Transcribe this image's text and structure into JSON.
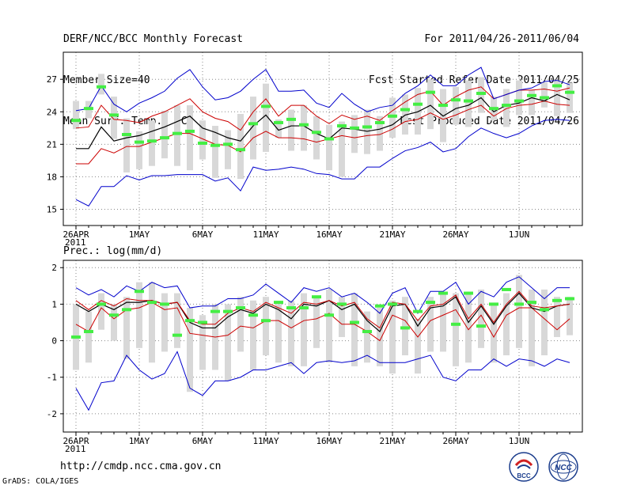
{
  "header": {
    "title": "DERF/NCC/BCC Monthly Forecast",
    "member_size": "Member Size=40",
    "variable": "Mean Surf. Temp.: °C",
    "period": "For 2011/04/26-2011/06/04",
    "start_date": "Fcst Started Refer Date 2011/04/25",
    "produced_date": "Fcst Produced Date 2011/04/26"
  },
  "footer": {
    "url": "http://cmdp.ncc.cma.gov.cn",
    "credit": "GrADS: COLA/IGES",
    "logo_bcc": "BCC",
    "logo_ncc": "NCC"
  },
  "colors": {
    "envelope": "#0000cc",
    "spread": "#cc0000",
    "mean": "#000000",
    "box": "#d8d8d8",
    "median": "#44ee44",
    "grid": "#888888"
  },
  "chart_data": [
    {
      "type": "box-line",
      "title": "Mean Surf. Temp.: °C",
      "ylabel": "Mean Surf. Temp. (°C)",
      "ylim": [
        13.5,
        29.5
      ],
      "yticks": [
        15,
        18,
        21,
        24,
        27
      ],
      "x_tick_labels": [
        "26APR",
        "1MAY",
        "6MAY",
        "11MAY",
        "16MAY",
        "21MAY",
        "26MAY",
        "1JUN"
      ],
      "x_year_label": "2011",
      "days": 40,
      "series": [
        {
          "name": "max",
          "values": [
            15.9,
            15.3,
            17.1,
            17.1,
            18.1,
            17.7,
            18.1,
            18.1,
            18.2,
            18.2,
            18.2,
            17.6,
            17.9,
            16.7,
            18.9,
            18.6,
            18.7,
            18.9,
            18.7,
            18.3,
            18.2,
            17.8,
            17.8,
            18.9,
            18.9,
            19.7,
            20.4,
            20.7,
            21.2,
            20.3,
            20.6,
            21.7,
            22.5,
            22.0,
            21.6,
            22.0,
            22.7,
            23.2,
            23.3,
            23.2
          ]
        },
        {
          "name": "p_low",
          "values": [
            19.2,
            19.2,
            20.6,
            20.2,
            20.8,
            20.8,
            21.2,
            21.6,
            22.0,
            22.0,
            21.5,
            21.0,
            20.9,
            20.3,
            21.6,
            22.2,
            21.6,
            21.6,
            21.5,
            21.2,
            21.5,
            21.8,
            21.6,
            21.8,
            21.9,
            22.4,
            23.1,
            23.3,
            23.9,
            23.3,
            23.7,
            24.2,
            24.6,
            23.6,
            24.3,
            24.6,
            24.7,
            25.0,
            24.7,
            24.6
          ]
        },
        {
          "name": "mean",
          "values": [
            20.6,
            20.6,
            22.6,
            21.3,
            21.6,
            21.8,
            22.2,
            22.6,
            23.1,
            23.6,
            22.5,
            22.1,
            21.6,
            21.3,
            22.7,
            23.7,
            22.3,
            22.7,
            22.7,
            22.0,
            21.5,
            22.5,
            22.4,
            22.2,
            22.4,
            22.8,
            23.7,
            24.0,
            24.6,
            23.6,
            24.3,
            24.6,
            25.3,
            24.0,
            24.6,
            24.8,
            25.3,
            25.0,
            25.6,
            25.1
          ]
        },
        {
          "name": "p_high",
          "values": [
            22.5,
            22.6,
            24.6,
            23.3,
            23.2,
            23.0,
            23.6,
            24.0,
            24.6,
            25.2,
            24.0,
            23.4,
            23.1,
            22.3,
            24.0,
            25.2,
            23.6,
            24.6,
            24.6,
            23.6,
            22.9,
            23.7,
            23.3,
            23.6,
            23.2,
            24.1,
            24.9,
            25.6,
            25.9,
            24.6,
            25.4,
            26.0,
            26.3,
            25.2,
            25.6,
            26.0,
            26.0,
            26.1,
            25.9,
            26.2
          ]
        },
        {
          "name": "min",
          "values": [
            24.1,
            24.3,
            26.4,
            24.7,
            24.0,
            24.8,
            25.3,
            25.9,
            27.1,
            27.9,
            26.3,
            25.1,
            25.3,
            25.9,
            27.0,
            27.9,
            25.9,
            25.9,
            26.0,
            24.8,
            24.4,
            25.7,
            24.7,
            24.0,
            24.4,
            24.6,
            25.7,
            26.4,
            27.4,
            26.4,
            26.4,
            27.4,
            28.1,
            25.2,
            25.6,
            26.0,
            26.2,
            26.8,
            26.9,
            26.5
          ]
        }
      ],
      "boxes": {
        "low": [
          22.4,
          23.4,
          25.6,
          21.5,
          18.4,
          18.7,
          19.0,
          19.7,
          19.0,
          18.6,
          19.6,
          17.9,
          18.7,
          17.8,
          19.6,
          20.3,
          21.6,
          20.4,
          20.4,
          19.6,
          18.6,
          18.0,
          20.2,
          20.1,
          20.4,
          21.6,
          21.9,
          21.9,
          22.4,
          21.2,
          22.8,
          22.6,
          23.9,
          23.2,
          22.6,
          23.7,
          23.7,
          24.4,
          23.6,
          23.9
        ],
        "high": [
          25.0,
          25.0,
          27.5,
          25.4,
          23.4,
          22.2,
          23.2,
          24.1,
          24.6,
          24.6,
          23.2,
          22.7,
          22.3,
          23.8,
          25.4,
          26.6,
          23.3,
          24.2,
          24.6,
          23.6,
          22.8,
          23.1,
          23.7,
          24.2,
          23.6,
          25.3,
          25.6,
          26.2,
          27.0,
          26.1,
          26.3,
          26.9,
          27.2,
          25.4,
          26.1,
          26.9,
          26.0,
          26.7,
          26.9,
          26.7
        ],
        "median": [
          23.2,
          24.3,
          26.3,
          23.7,
          21.9,
          21.2,
          21.3,
          21.6,
          22.0,
          22.2,
          21.1,
          20.9,
          21.0,
          20.5,
          22.9,
          24.5,
          23.0,
          23.3,
          22.8,
          22.1,
          21.5,
          22.7,
          22.5,
          22.6,
          23.0,
          23.6,
          24.2,
          24.7,
          25.8,
          24.6,
          25.1,
          25.0,
          25.7,
          24.3,
          24.6,
          25.0,
          25.5,
          25.3,
          26.4,
          25.8
        ]
      }
    },
    {
      "type": "box-line",
      "title": "Prec.: log(mm/d)",
      "ylabel": "log(mm/d)",
      "ylim": [
        -2.5,
        2.2
      ],
      "yticks": [
        -2,
        -1,
        0,
        1,
        2
      ],
      "x_tick_labels": [
        "26APR",
        "1MAY",
        "6MAY",
        "11MAY",
        "16MAY",
        "21MAY",
        "26MAY",
        "1JUN"
      ],
      "x_year_label": "2011",
      "days": 40,
      "series": [
        {
          "name": "min",
          "values": [
            -1.3,
            -1.9,
            -1.15,
            -1.1,
            -0.4,
            -0.8,
            -1.05,
            -0.9,
            -0.3,
            -1.3,
            -1.5,
            -1.1,
            -1.1,
            -1.0,
            -0.8,
            -0.8,
            -0.7,
            -0.6,
            -0.9,
            -0.6,
            -0.55,
            -0.6,
            -0.55,
            -0.4,
            -0.6,
            -0.6,
            -0.6,
            -0.5,
            -0.4,
            -1.0,
            -1.1,
            -0.8,
            -0.8,
            -0.5,
            -0.7,
            -0.5,
            -0.55,
            -0.7,
            -0.5,
            -0.6
          ]
        },
        {
          "name": "p_low",
          "values": [
            0.45,
            0.25,
            0.9,
            0.6,
            0.85,
            0.9,
            1.05,
            0.85,
            0.9,
            0.2,
            0.15,
            0.1,
            0.15,
            0.4,
            0.35,
            0.55,
            0.55,
            0.35,
            0.55,
            0.6,
            0.75,
            0.45,
            0.45,
            0.25,
            0.0,
            0.7,
            0.55,
            0.1,
            0.55,
            0.7,
            0.85,
            0.3,
            0.7,
            0.1,
            0.7,
            0.9,
            0.9,
            0.6,
            0.3,
            0.6
          ]
        },
        {
          "name": "mean",
          "values": [
            1.0,
            0.8,
            1.0,
            0.85,
            1.05,
            1.05,
            1.1,
            1.0,
            1.05,
            0.5,
            0.35,
            0.35,
            0.65,
            0.85,
            0.75,
            1.0,
            0.85,
            0.6,
            1.0,
            0.95,
            1.1,
            0.85,
            1.0,
            0.55,
            0.25,
            0.95,
            1.0,
            0.4,
            0.9,
            0.95,
            1.2,
            0.5,
            0.95,
            0.45,
            0.95,
            1.3,
            0.9,
            0.8,
            0.95,
            1.0
          ]
        },
        {
          "name": "p_high",
          "values": [
            1.1,
            0.85,
            1.1,
            0.95,
            1.15,
            1.1,
            1.1,
            1.0,
            1.05,
            0.55,
            0.45,
            0.45,
            0.75,
            0.9,
            0.8,
            1.05,
            0.9,
            0.75,
            1.05,
            1.0,
            1.1,
            0.95,
            1.05,
            0.6,
            0.35,
            1.05,
            1.0,
            0.55,
            0.95,
            1.0,
            1.25,
            0.6,
            1.0,
            0.5,
            1.0,
            1.35,
            0.95,
            0.9,
            0.95,
            1.0
          ]
        },
        {
          "name": "max",
          "values": [
            1.45,
            1.25,
            1.4,
            1.2,
            1.5,
            1.35,
            1.6,
            1.45,
            1.5,
            0.9,
            0.95,
            0.95,
            1.15,
            1.15,
            1.25,
            1.55,
            1.3,
            1.05,
            1.45,
            1.35,
            1.45,
            1.2,
            1.3,
            1.05,
            0.75,
            1.3,
            1.45,
            0.75,
            1.35,
            1.35,
            1.6,
            1.0,
            1.35,
            1.2,
            1.6,
            1.75,
            1.45,
            1.15,
            1.45,
            1.45
          ]
        }
      ],
      "boxes": {
        "low": [
          -0.8,
          -0.6,
          0.3,
          0.0,
          -0.5,
          -0.2,
          -0.6,
          -0.3,
          -0.2,
          -1.4,
          -0.8,
          -0.8,
          -1.1,
          -0.3,
          -0.8,
          -0.4,
          -0.6,
          -0.7,
          -0.7,
          -0.2,
          -0.6,
          0.1,
          -0.7,
          -0.6,
          -0.7,
          -0.9,
          -0.4,
          -0.9,
          -0.3,
          -0.3,
          -0.7,
          -0.6,
          -0.2,
          -0.6,
          -0.4,
          -0.2,
          -0.7,
          -0.4,
          0.1,
          0.15
        ],
        "high": [
          1.0,
          0.8,
          1.3,
          1.0,
          1.2,
          1.6,
          1.6,
          1.3,
          1.3,
          0.9,
          0.7,
          1.0,
          1.0,
          1.2,
          1.1,
          1.2,
          1.0,
          1.1,
          1.3,
          1.2,
          1.4,
          1.2,
          1.3,
          0.8,
          0.9,
          1.1,
          1.2,
          0.6,
          1.2,
          1.3,
          1.3,
          1.3,
          1.4,
          1.0,
          1.3,
          1.8,
          1.4,
          1.4,
          1.2,
          1.2
        ],
        "median": [
          0.1,
          0.25,
          1.0,
          0.7,
          0.85,
          1.35,
          1.05,
          1.0,
          0.15,
          0.55,
          0.5,
          0.8,
          0.8,
          0.9,
          0.7,
          0.55,
          1.05,
          0.9,
          0.9,
          1.2,
          0.7,
          1.0,
          0.5,
          0.25,
          0.95,
          1.0,
          0.35,
          0.8,
          1.05,
          1.3,
          0.45,
          1.3,
          0.4,
          1.0,
          1.4,
          1.0,
          1.05,
          0.85,
          1.1,
          1.15
        ]
      }
    }
  ]
}
